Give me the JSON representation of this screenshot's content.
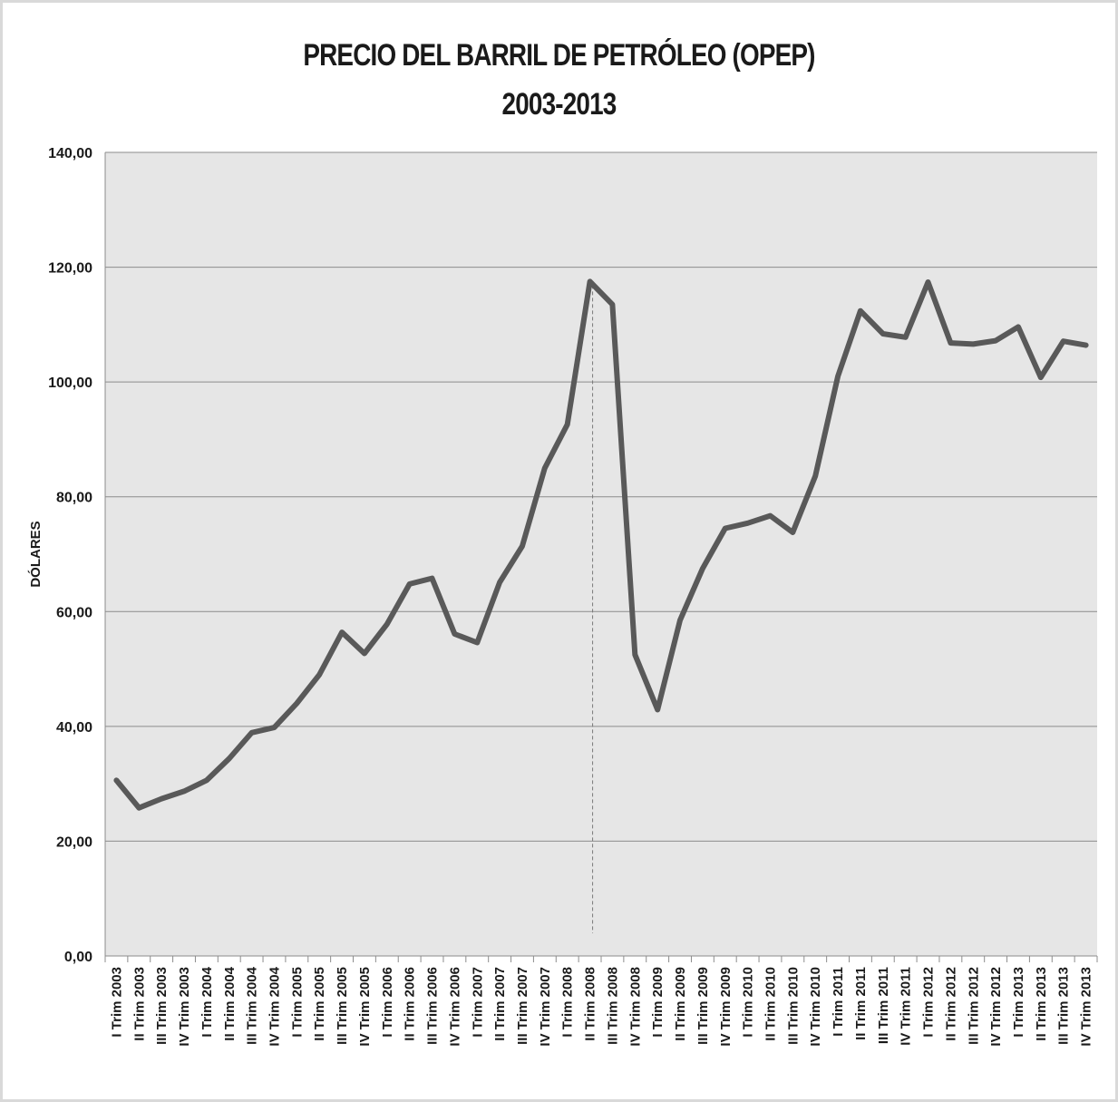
{
  "chart_data": {
    "type": "line",
    "title": "PRECIO DEL BARRIL DE PETRÓLEO (OPEP)",
    "subtitle": "2003-2013",
    "xlabel": "",
    "ylabel": "DÓLARES",
    "ylim": [
      0,
      140
    ],
    "yticks": [
      "0,00",
      "20,00",
      "40,00",
      "60,00",
      "80,00",
      "100,00",
      "120,00",
      "140,00"
    ],
    "ytick_values": [
      0,
      20,
      40,
      60,
      80,
      100,
      120,
      140
    ],
    "grid": true,
    "line_color": "#595959",
    "plot_background": "#e6e6e6",
    "marked_category": "II Trim 2008",
    "categories": [
      "I Trim 2003",
      "II Trim 2003",
      "III Trim 2003",
      "IV Trim 2003",
      "I Trim 2004",
      "II Trim 2004",
      "III Trim 2004",
      "IV Trim 2004",
      "I Trim 2005",
      "II Trim 2005",
      "III Trim 2005",
      "IV Trim 2005",
      "I Trim 2006",
      "II Trim 2006",
      "III Trim 2006",
      "IV Trim 2006",
      "I Trim 2007",
      "II Trim 2007",
      "III Trim 2007",
      "IV Trim 2007",
      "I Trim 2008",
      "II Trim 2008",
      "III Trim 2008",
      "IV Trim 2008",
      "I Trim 2009",
      "II Trim 2009",
      "III Trim 2009",
      "IV Trim 2009",
      "I Trim 2010",
      "II Trim 2010",
      "III Trim 2010",
      "IV Trim 2010",
      "I Trim 2011",
      "II Trim 2011",
      "III Trim 2011",
      "IV Trim 2011",
      "I Trim 2012",
      "II Trim 2012",
      "III Trim 2012",
      "IV Trim 2012",
      "I Trim 2013",
      "II Trim 2013",
      "III Trim 2013",
      "IV Trim 2013"
    ],
    "values": [
      30.6,
      25.8,
      27.4,
      28.7,
      30.6,
      34.4,
      38.9,
      39.8,
      44.0,
      49.0,
      56.4,
      52.7,
      57.8,
      64.8,
      65.8,
      56.1,
      54.6,
      65.1,
      71.4,
      85.0,
      92.6,
      117.5,
      113.5,
      52.5,
      42.9,
      58.5,
      67.5,
      74.5,
      75.4,
      76.7,
      73.8,
      83.6,
      101.0,
      112.4,
      108.4,
      107.8,
      117.4,
      106.8,
      106.6,
      107.2,
      109.6,
      100.8,
      107.1,
      106.4
    ]
  }
}
